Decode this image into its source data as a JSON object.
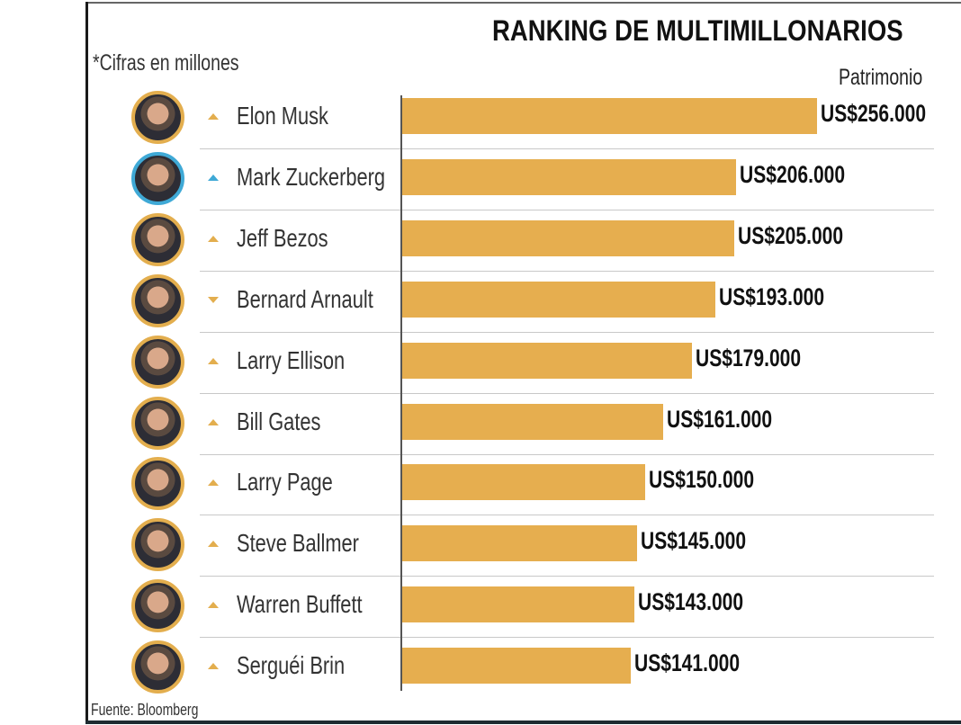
{
  "chart_data": {
    "type": "bar",
    "orientation": "horizontal",
    "title": "RANKING DE MULTIMILLONARIOS",
    "subtitle": "*Cifras en millones",
    "ylabel": "Patrimonio",
    "source": "Fuente: Bloomberg",
    "categories": [
      "Elon Musk",
      "Mark Zuckerberg",
      "Jeff Bezos",
      "Bernard Arnault",
      "Larry Ellison",
      "Bill Gates",
      "Larry Page",
      "Steve Ballmer",
      "Warren Buffett",
      "Serguéi Brin"
    ],
    "values": [
      256000,
      206000,
      205000,
      193000,
      179000,
      161000,
      150000,
      145000,
      143000,
      141000
    ],
    "labels": [
      "US$256.000",
      "US$206.000",
      "US$205.000",
      "US$193.000",
      "US$179.000",
      "US$161.000",
      "US$150.000",
      "US$145.000",
      "US$143.000",
      "US$141.000"
    ],
    "trend": [
      "up",
      "up",
      "up",
      "down",
      "up",
      "up",
      "up",
      "up",
      "up",
      "up"
    ],
    "trend_colors": [
      "#e3ae4e",
      "#3fa9d6",
      "#e3ae4e",
      "#e3ae4e",
      "#e3ae4e",
      "#e3ae4e",
      "#e3ae4e",
      "#e3ae4e",
      "#e3ae4e",
      "#e3ae4e"
    ],
    "bar_color": "#e6ae4f",
    "xlim": [
      0,
      256000
    ],
    "grid": false
  }
}
